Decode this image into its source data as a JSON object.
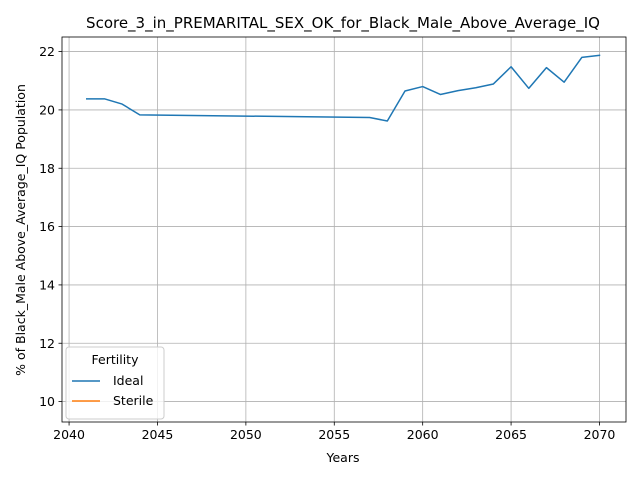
{
  "chart_data": {
    "type": "line",
    "title": "Score_3_in_PREMARITAL_SEX_OK_for_Black_Male_Above_Average_IQ",
    "xlabel": "Years",
    "ylabel": "% of Black_Male Above_Average_IQ Population",
    "xlim": [
      2039.6,
      2071.5
    ],
    "ylim": [
      9.3,
      22.5
    ],
    "xticks": [
      2040,
      2045,
      2050,
      2055,
      2060,
      2065,
      2070
    ],
    "yticks": [
      10,
      12,
      14,
      16,
      18,
      20,
      22
    ],
    "grid": true,
    "legend": {
      "title": "Fertility",
      "placement": "lower-left",
      "entries": [
        {
          "name": "Ideal",
          "color": "#1f77b4"
        },
        {
          "name": "Sterile",
          "color": "#ff7f0e"
        }
      ]
    },
    "series": [
      {
        "name": "Ideal",
        "color": "#1f77b4",
        "x": [
          2041,
          2042,
          2043,
          2044,
          2057,
          2058,
          2059,
          2060,
          2061,
          2062,
          2063,
          2064,
          2065,
          2066,
          2067,
          2068,
          2069,
          2070
        ],
        "y": [
          20.38,
          20.38,
          20.2,
          19.83,
          19.74,
          19.62,
          20.65,
          20.8,
          20.53,
          20.66,
          20.76,
          20.89,
          21.48,
          20.74,
          21.45,
          20.95,
          21.8,
          21.87
        ]
      },
      {
        "name": "Sterile",
        "color": "#ff7f0e",
        "x": [],
        "y": []
      }
    ]
  }
}
